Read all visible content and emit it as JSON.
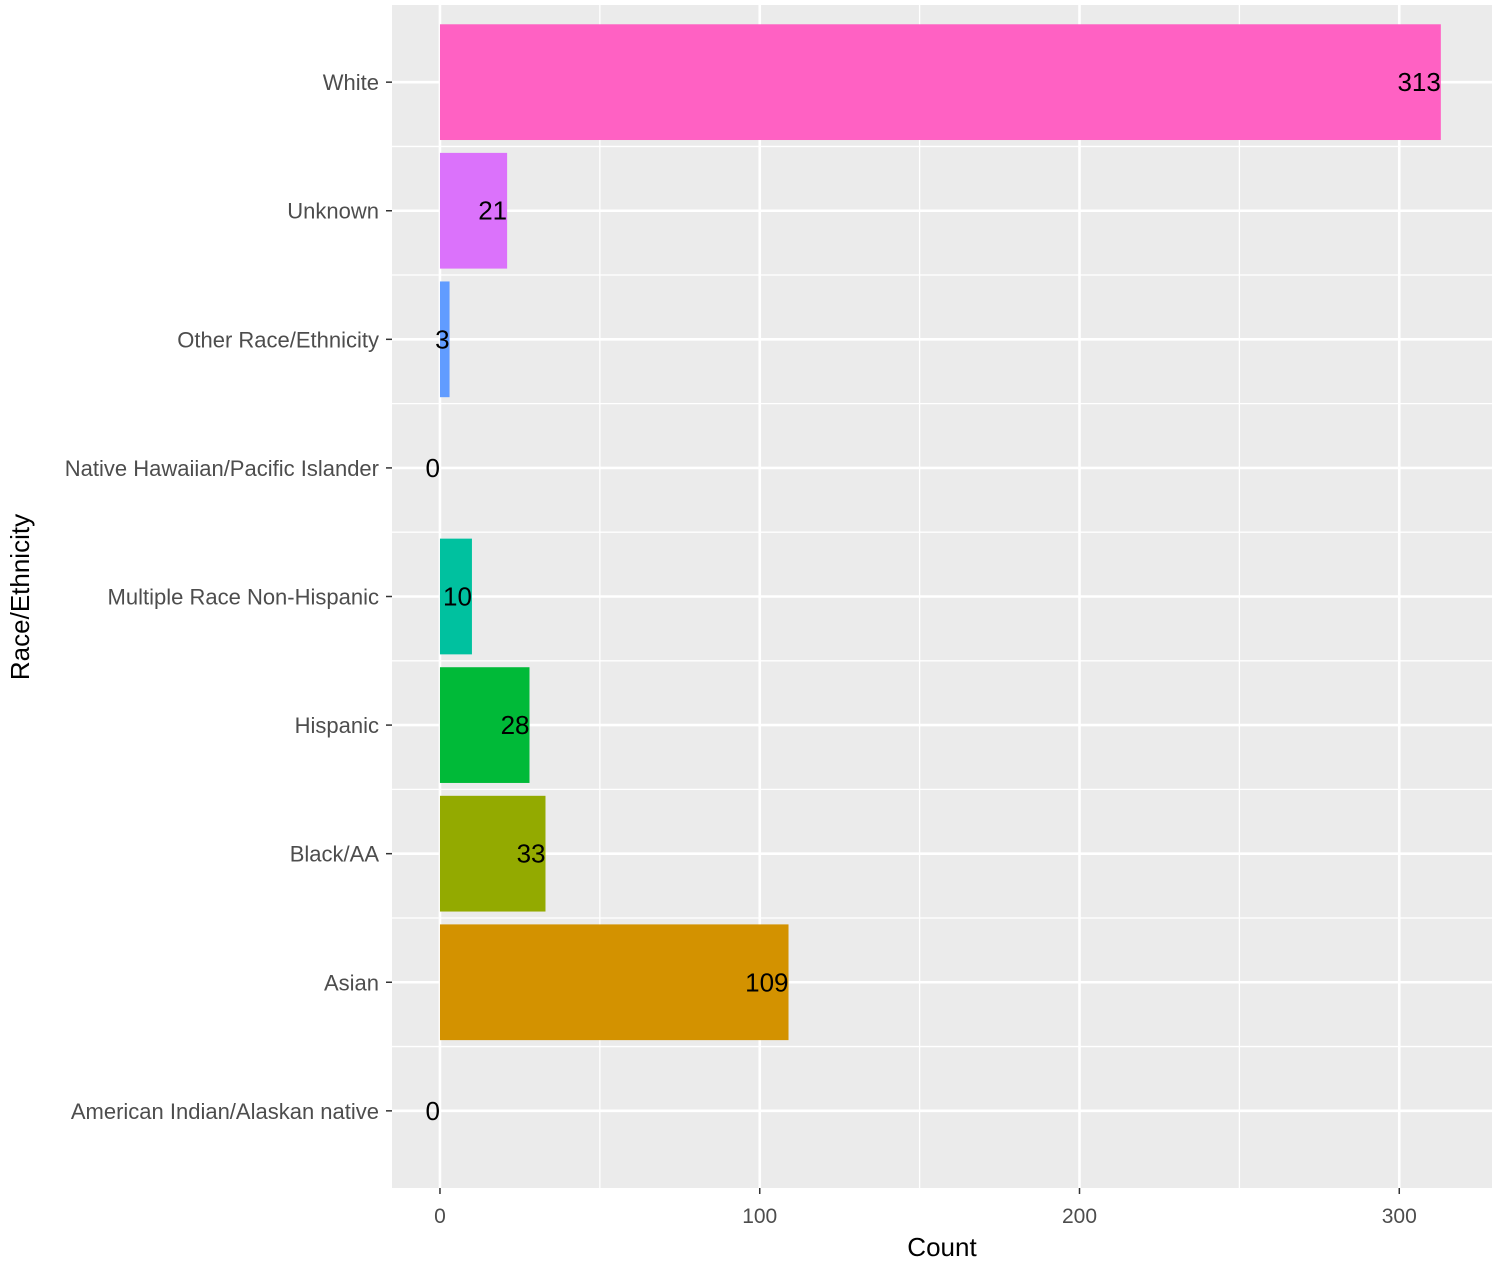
{
  "chart_data": {
    "type": "bar",
    "orientation": "horizontal",
    "title": "",
    "xlabel": "Count",
    "ylabel": "Race/Ethnicity",
    "xlim": [
      -15,
      329
    ],
    "x_ticks": [
      0,
      100,
      200,
      300
    ],
    "grid": true,
    "legend": "none",
    "categories": [
      "American Indian/Alaskan native",
      "Asian",
      "Black/AA",
      "Hispanic",
      "Multiple Race Non-Hispanic",
      "Native Hawaiian/Pacific Islander",
      "Other Race/Ethnicity",
      "Unknown",
      "White"
    ],
    "values": [
      0,
      109,
      33,
      28,
      10,
      0,
      3,
      21,
      313
    ],
    "colors": [
      "#F8766D",
      "#D39200",
      "#93AA00",
      "#00BA38",
      "#00C19F",
      "#00B9E3",
      "#619CFF",
      "#DB72FB",
      "#FF61C3"
    ]
  },
  "style": {
    "panel_background": "#EBEBEB",
    "grid_color": "#FFFFFF",
    "text_color": "#4D4D4D",
    "title_color": "#000000"
  }
}
